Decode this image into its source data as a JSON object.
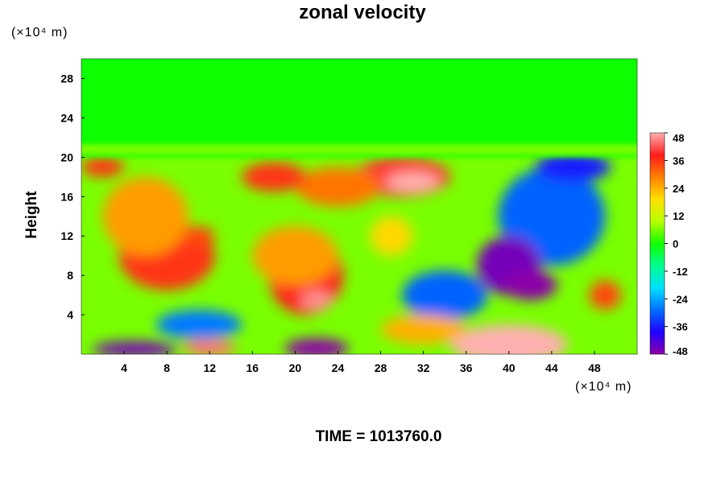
{
  "chart_data": {
    "type": "heatmap",
    "title": "zonal velocity",
    "ylabel": "Height",
    "xlabel": "",
    "x_unit_text": "(×10⁴ m)",
    "y_unit_text": "(×10⁴ m)",
    "xlim": [
      0,
      52
    ],
    "ylim": [
      0,
      30
    ],
    "x_ticks": [
      4,
      8,
      12,
      16,
      20,
      24,
      28,
      32,
      36,
      40,
      44,
      48
    ],
    "y_ticks": [
      4,
      8,
      12,
      16,
      20,
      24,
      28
    ],
    "colorbar": {
      "min": -48,
      "max": 48,
      "ticks": [
        48,
        36,
        24,
        12,
        0,
        -12,
        -24,
        -36,
        -48
      ],
      "colors": [
        "#8b00a8",
        "#1e00ff",
        "#0070ff",
        "#00e0ff",
        "#00ff90",
        "#10ff00",
        "#b8ff00",
        "#ffe000",
        "#ff8000",
        "#ff1c1c",
        "#ffb0b0"
      ]
    },
    "features": [
      {
        "x": 8,
        "y": 10,
        "value": 36,
        "rx": 4.5,
        "ry": 3.5
      },
      {
        "x": 6,
        "y": 14,
        "value": 26,
        "rx": 4,
        "ry": 4
      },
      {
        "x": 11,
        "y": 12,
        "value": 34,
        "rx": 1.5,
        "ry": 1
      },
      {
        "x": 2,
        "y": 19,
        "value": 36,
        "rx": 2,
        "ry": 1
      },
      {
        "x": 21,
        "y": 8,
        "value": 38,
        "rx": 3.5,
        "ry": 4
      },
      {
        "x": 22,
        "y": 5.5,
        "value": 46,
        "rx": 1.5,
        "ry": 1
      },
      {
        "x": 20,
        "y": 10,
        "value": 26,
        "rx": 4,
        "ry": 3
      },
      {
        "x": 30,
        "y": 18,
        "value": 40,
        "rx": 4.5,
        "ry": 2
      },
      {
        "x": 31,
        "y": 17.5,
        "value": 48,
        "rx": 2.5,
        "ry": 1
      },
      {
        "x": 24,
        "y": 17,
        "value": 30,
        "rx": 4,
        "ry": 2
      },
      {
        "x": 18,
        "y": 18,
        "value": 36,
        "rx": 3,
        "ry": 1.5
      },
      {
        "x": 29,
        "y": 12,
        "value": 20,
        "rx": 2,
        "ry": 2
      },
      {
        "x": 44,
        "y": 14,
        "value": -30,
        "rx": 5,
        "ry": 5
      },
      {
        "x": 40,
        "y": 9,
        "value": -46,
        "rx": 3,
        "ry": 3
      },
      {
        "x": 42,
        "y": 7,
        "value": -48,
        "rx": 2.5,
        "ry": 1.5
      },
      {
        "x": 46,
        "y": 19,
        "value": -36,
        "rx": 3.5,
        "ry": 1.5
      },
      {
        "x": 34,
        "y": 6,
        "value": -30,
        "rx": 4,
        "ry": 2.5
      },
      {
        "x": 49,
        "y": 6,
        "value": 34,
        "rx": 1.5,
        "ry": 1.5
      },
      {
        "x": 40,
        "y": 1,
        "value": 48,
        "rx": 5.5,
        "ry": 2
      },
      {
        "x": 22,
        "y": 0.6,
        "value": -48,
        "rx": 3,
        "ry": 1
      },
      {
        "x": 5,
        "y": 0.5,
        "value": -46,
        "rx": 4,
        "ry": 0.8
      },
      {
        "x": 12,
        "y": 0.6,
        "value": 44,
        "rx": 2.5,
        "ry": 0.8
      },
      {
        "x": 11,
        "y": 3,
        "value": -28,
        "rx": 4,
        "ry": 1.5
      },
      {
        "x": 32,
        "y": 2.5,
        "value": 24,
        "rx": 4,
        "ry": 1.5
      }
    ],
    "upper_layer": {
      "y_from": 20,
      "y_to": 30,
      "value": 0
    }
  },
  "time_label": "TIME = 1013760.0"
}
